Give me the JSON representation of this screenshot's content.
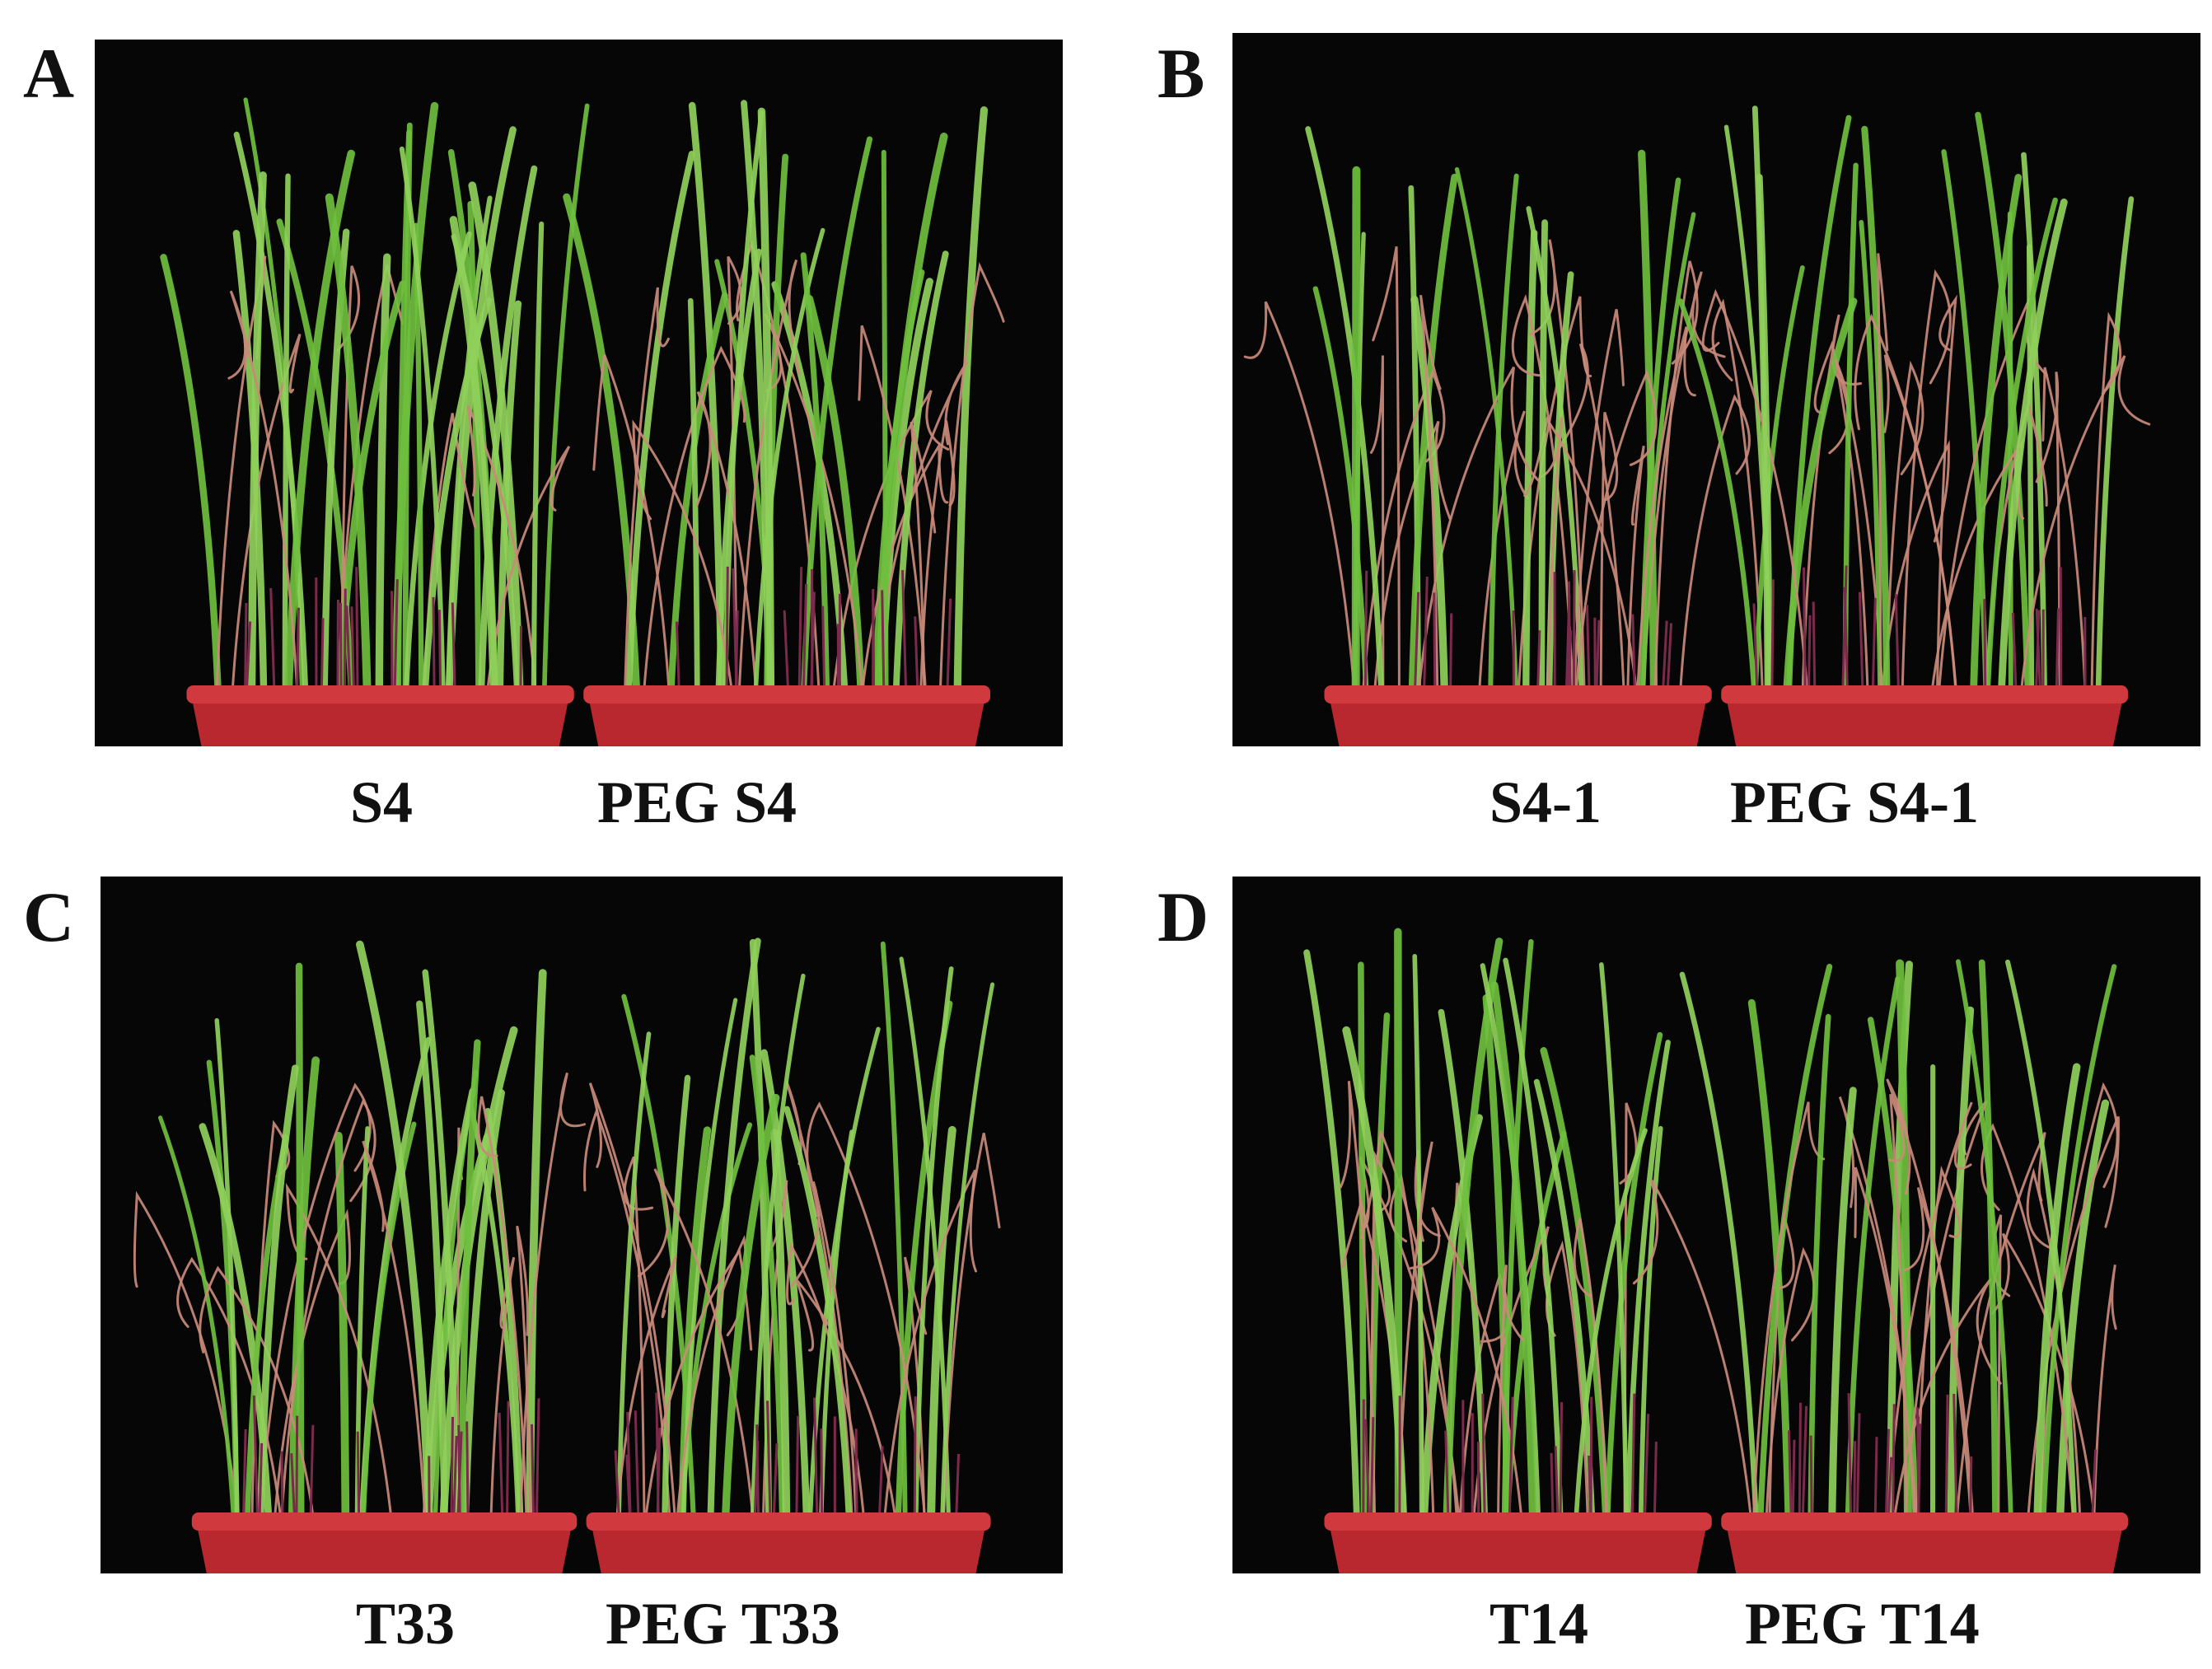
{
  "panels": [
    {
      "letter": "A",
      "labels": [
        "S4",
        "PEG S4"
      ]
    },
    {
      "letter": "B",
      "labels": [
        "S4-1",
        "PEG S4-1"
      ]
    },
    {
      "letter": "C",
      "labels": [
        "T33",
        "PEG T33"
      ]
    },
    {
      "letter": "D",
      "labels": [
        "T14",
        "PEG T14"
      ]
    }
  ],
  "colors": {
    "background": "#060606",
    "pot": "#b8282e",
    "leaf_green": "#6fbf3f",
    "leaf_dry": "#c98a7a"
  }
}
